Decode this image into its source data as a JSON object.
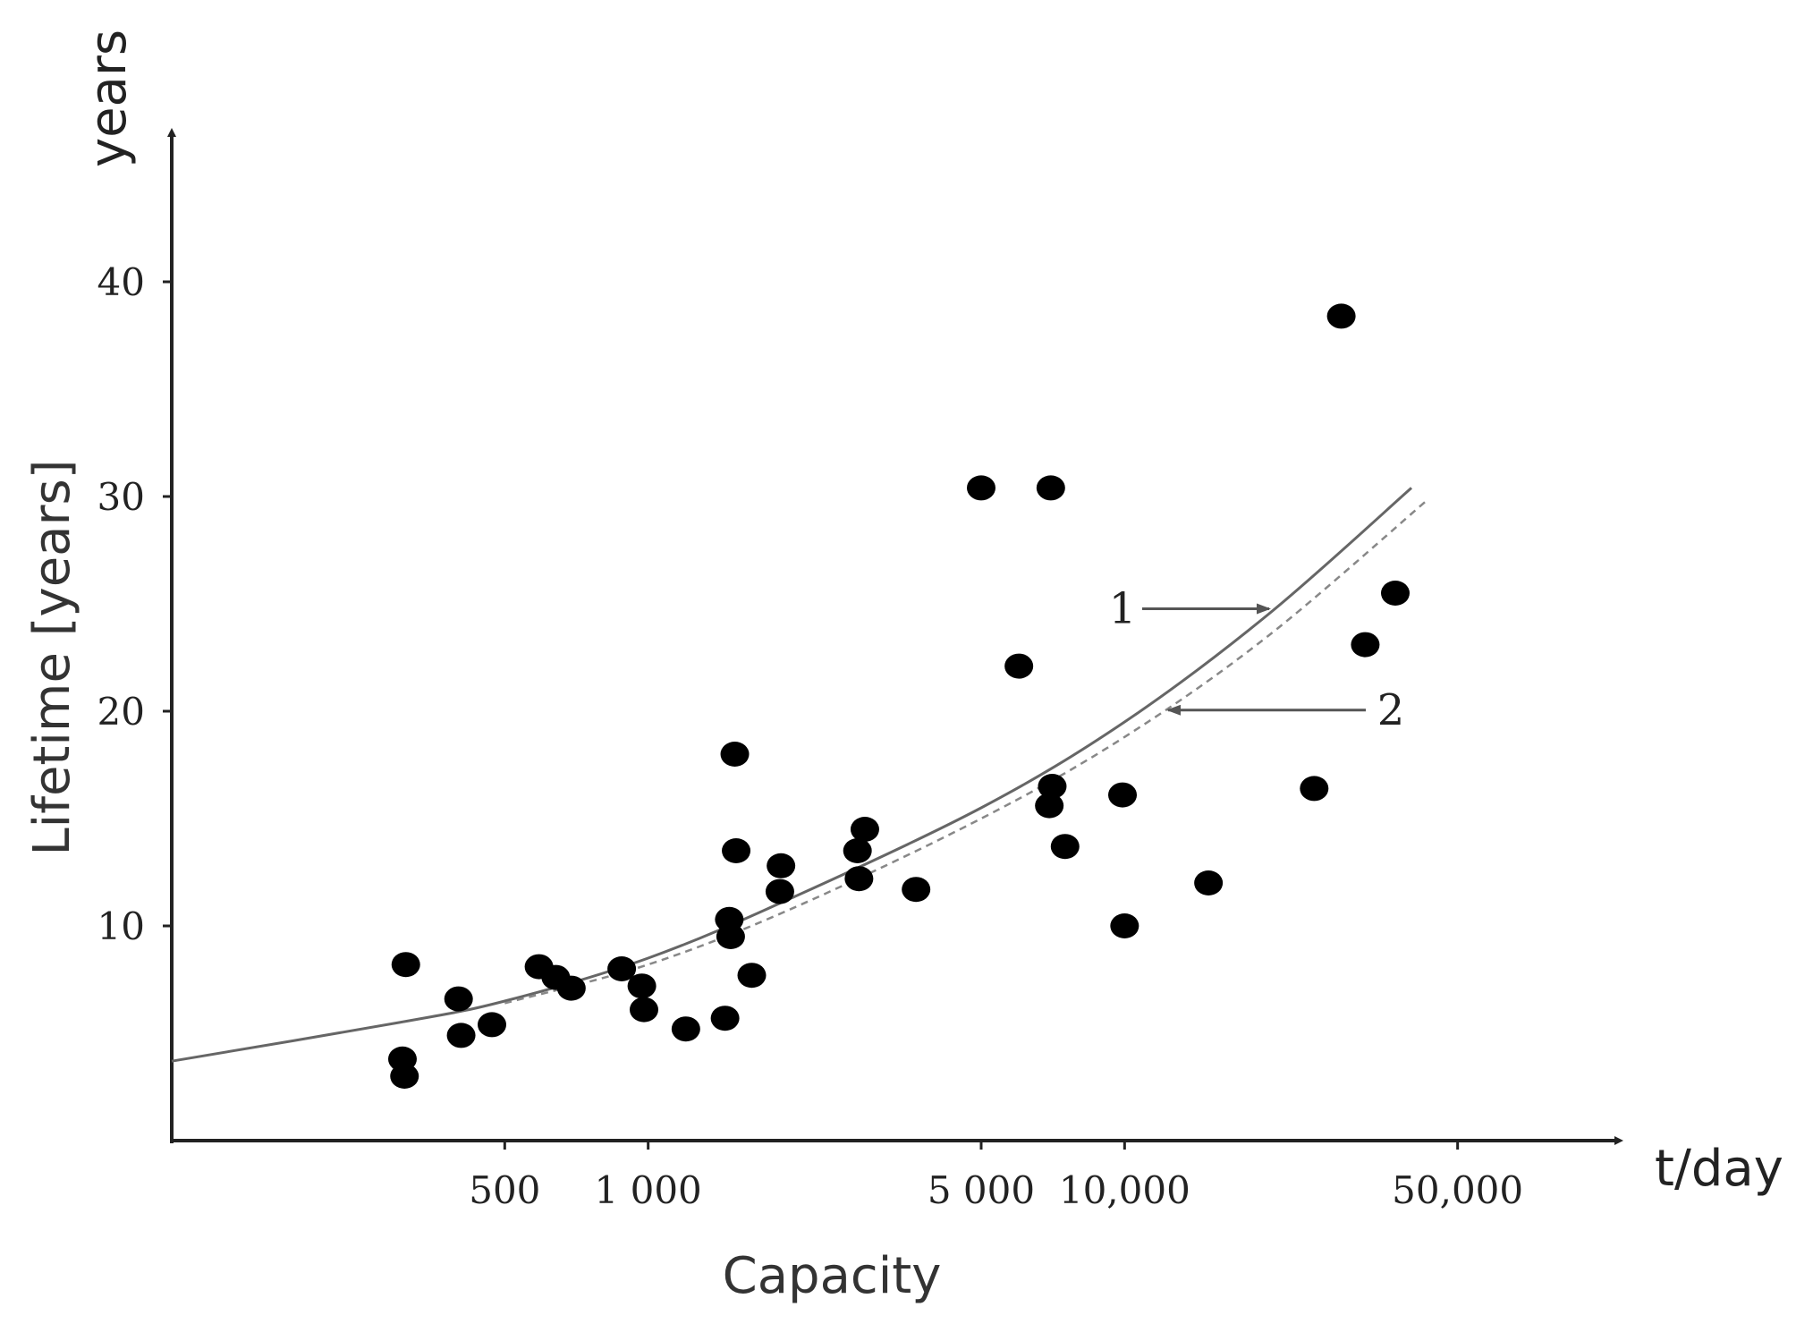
{
  "chart_data": {
    "type": "scatter",
    "title": "",
    "xlabel": "Capacity",
    "x_unit": "t/day",
    "ylabel": "Lifetime [years]",
    "y_unit": "years",
    "x_scale": "log",
    "xlim": [
      100,
      100000
    ],
    "ylim": [
      0,
      45
    ],
    "x_ticks": [
      {
        "value": 500,
        "label": "500"
      },
      {
        "value": 1000,
        "label": "1 000"
      },
      {
        "value": 5000,
        "label": "5 000"
      },
      {
        "value": 10000,
        "label": "10,000"
      },
      {
        "value": 50000,
        "label": "50,000"
      }
    ],
    "y_ticks": [
      {
        "value": 10,
        "label": "10"
      },
      {
        "value": 20,
        "label": "20"
      },
      {
        "value": 30,
        "label": "30"
      },
      {
        "value": 40,
        "label": "40"
      }
    ],
    "grid": false,
    "legend": "none",
    "points": [
      {
        "x": 310,
        "y": 8.2
      },
      {
        "x": 305,
        "y": 3.8
      },
      {
        "x": 308,
        "y": 3.0
      },
      {
        "x": 400,
        "y": 6.6
      },
      {
        "x": 405,
        "y": 4.9
      },
      {
        "x": 470,
        "y": 5.4
      },
      {
        "x": 590,
        "y": 8.1
      },
      {
        "x": 640,
        "y": 7.6
      },
      {
        "x": 690,
        "y": 7.1
      },
      {
        "x": 880,
        "y": 8.0
      },
      {
        "x": 970,
        "y": 7.2
      },
      {
        "x": 980,
        "y": 6.1
      },
      {
        "x": 1200,
        "y": 5.2
      },
      {
        "x": 1450,
        "y": 5.7
      },
      {
        "x": 1480,
        "y": 10.3
      },
      {
        "x": 1490,
        "y": 9.5
      },
      {
        "x": 1520,
        "y": 18.0
      },
      {
        "x": 1530,
        "y": 13.5
      },
      {
        "x": 1650,
        "y": 7.7
      },
      {
        "x": 1900,
        "y": 12.8
      },
      {
        "x": 1890,
        "y": 11.6
      },
      {
        "x": 2750,
        "y": 13.5
      },
      {
        "x": 2850,
        "y": 14.5
      },
      {
        "x": 2770,
        "y": 12.2
      },
      {
        "x": 3650,
        "y": 11.7
      },
      {
        "x": 5000,
        "y": 30.4
      },
      {
        "x": 6000,
        "y": 22.1
      },
      {
        "x": 7000,
        "y": 30.4
      },
      {
        "x": 6950,
        "y": 15.6
      },
      {
        "x": 7050,
        "y": 16.5
      },
      {
        "x": 7500,
        "y": 13.7
      },
      {
        "x": 9900,
        "y": 16.1
      },
      {
        "x": 10000,
        "y": 10.0
      },
      {
        "x": 15000,
        "y": 12.0
      },
      {
        "x": 25000,
        "y": 16.4
      },
      {
        "x": 28500,
        "y": 38.4
      },
      {
        "x": 32000,
        "y": 23.1
      },
      {
        "x": 37000,
        "y": 25.5
      }
    ],
    "series": [
      {
        "name": "1",
        "style": "solid",
        "x": [
          100,
          300,
          500,
          1000,
          2000,
          5000,
          10000,
          20000,
          40000
        ],
        "y": [
          3.7,
          5.5,
          6.5,
          8.5,
          11.3,
          15.5,
          19.5,
          24.5,
          30.4
        ]
      },
      {
        "name": "2",
        "style": "dashed",
        "x": [
          500,
          1000,
          2000,
          5000,
          10000,
          20000,
          43000
        ],
        "y": [
          6.4,
          8.2,
          10.8,
          15.0,
          18.8,
          23.5,
          29.8
        ]
      }
    ],
    "annotations": [
      {
        "label": "1",
        "target_series": "1"
      },
      {
        "label": "2",
        "target_series": "2"
      }
    ]
  },
  "colors": {
    "points": "#000000",
    "axes": "#222222",
    "curve_solid": "#666666",
    "curve_dashed": "#888888",
    "arrow": "#555555"
  }
}
